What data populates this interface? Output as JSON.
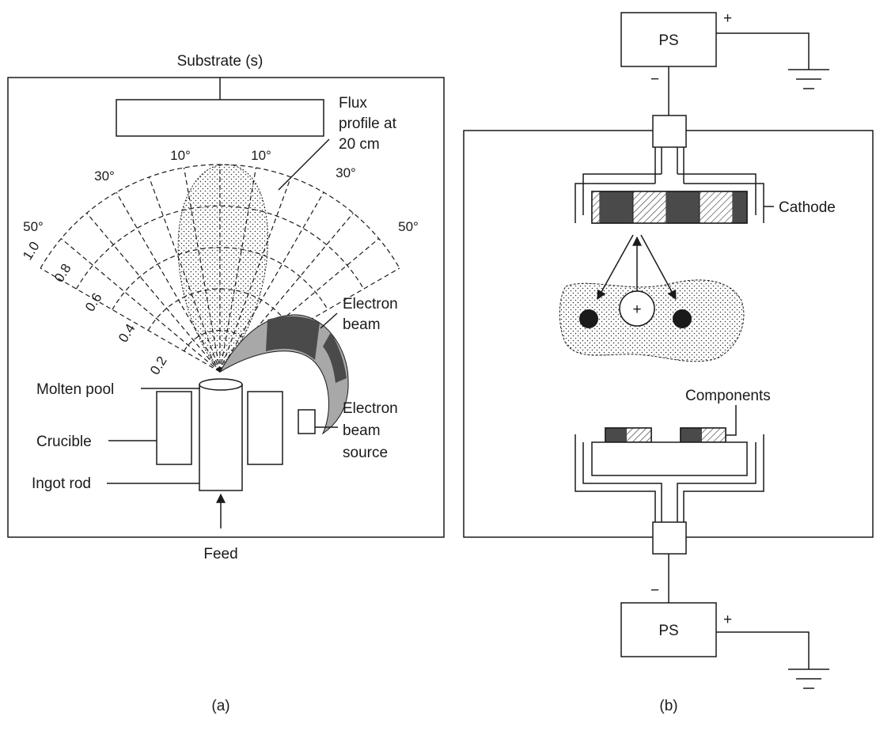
{
  "panel_a": {
    "caption": "(a)",
    "substrate_label": "Substrate (s)",
    "flux_label_1": "Flux",
    "flux_label_2": "profile at",
    "flux_label_3": "20 cm",
    "angle_labels": [
      "10°",
      "10°",
      "30°",
      "30°",
      "50°",
      "50°"
    ],
    "radial_labels": [
      "0.2",
      "0.4",
      "0.6",
      "0.8",
      "1.0"
    ],
    "electron_beam_1": "Electron",
    "electron_beam_2": "beam",
    "source_1": "Electron",
    "source_2": "beam",
    "source_3": "source",
    "molten_pool": "Molten pool",
    "crucible": "Crucible",
    "ingot_rod": "Ingot rod",
    "feed": "Feed"
  },
  "panel_b": {
    "caption": "(b)",
    "ps_top": "PS",
    "ps_bottom": "PS",
    "plus_sign": "+",
    "minus_sign": "−",
    "ion_sign": "+",
    "cathode": "Cathode",
    "components": "Components"
  },
  "colors": {
    "line": "#1a1a1a",
    "dark_fill": "#4a4a4a",
    "light_fill": "#a8a8a8"
  }
}
